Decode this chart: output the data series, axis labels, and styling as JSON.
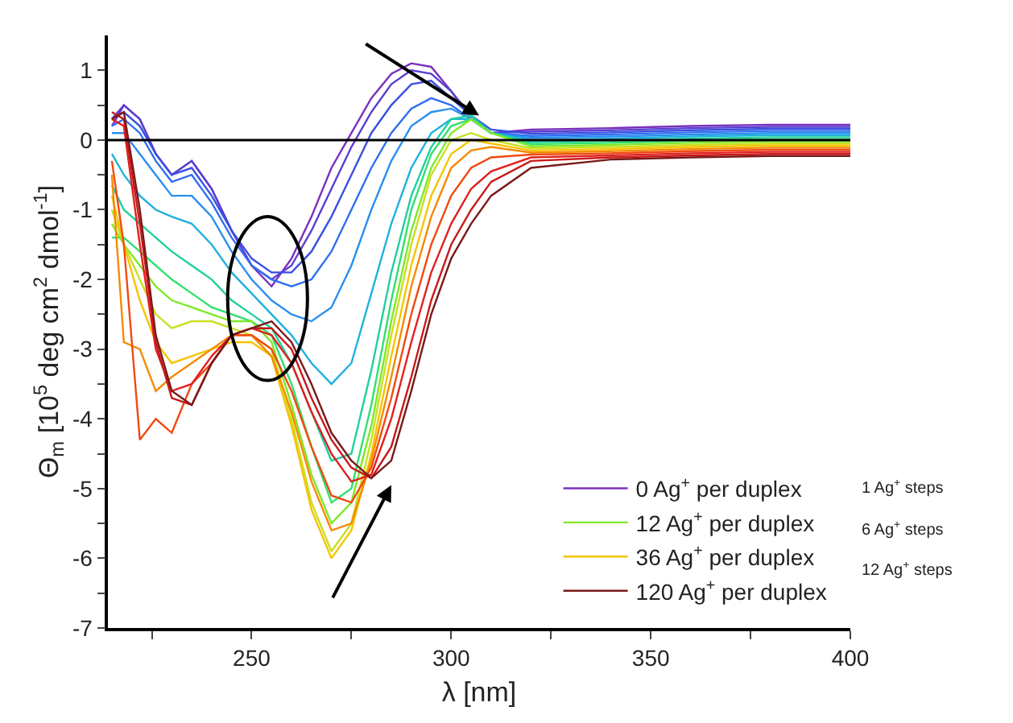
{
  "chart_data": {
    "type": "line",
    "xlabel": "λ [nm]",
    "ylabel": "Θ$_{m}$ [10$^{5}$ deg cm$^{2}$ dmol$^{-1}$]",
    "x": [
      215,
      218,
      222,
      226,
      230,
      235,
      240,
      245,
      250,
      255,
      260,
      265,
      270,
      275,
      280,
      285,
      290,
      295,
      300,
      305,
      310,
      320,
      340,
      360,
      380,
      400
    ],
    "xlim": [
      214,
      400
    ],
    "xticks": [
      {
        "value": 225,
        "label": null
      },
      250,
      {
        "value": 275,
        "label": null
      },
      300,
      {
        "value": 325,
        "label": null
      },
      350,
      {
        "value": 375,
        "label": null
      },
      400
    ],
    "ylim": [
      -7,
      1.5
    ],
    "yticks": [
      -7,
      {
        "value": -6.5,
        "label": null
      },
      -6,
      {
        "value": -5.5,
        "label": null
      },
      -5,
      {
        "value": -4.5,
        "label": null
      },
      -4,
      {
        "value": -3.5,
        "label": null
      },
      -3,
      {
        "value": -2.5,
        "label": null
      },
      -2,
      {
        "value": -1.5,
        "label": null
      },
      -1,
      {
        "value": -0.5,
        "label": null
      },
      0,
      {
        "value": 0.5,
        "label": null
      },
      1
    ],
    "legend": "bottom right",
    "marker": "none",
    "line_style": "solid",
    "ref_lines": [
      {
        "axis": "y",
        "value": 0,
        "color": "#000000"
      }
    ],
    "annotations": [
      "1 Ag$^{+}$ steps",
      "6 Ag$^{+}$ steps",
      "12 Ag$^{+}$ steps"
    ],
    "series": [
      {
        "name": "0 Ag$^{+}$ per duplex",
        "color": "#7b2fbe",
        "values": [
          0.2,
          0.5,
          0.3,
          -0.2,
          -0.5,
          -0.3,
          -0.7,
          -1.3,
          -1.8,
          -2.1,
          -1.7,
          -1.1,
          -0.4,
          0.1,
          0.6,
          0.95,
          1.1,
          1.05,
          0.7,
          0.3,
          0.1,
          0.15,
          0.17,
          0.2,
          0.22,
          0.22
        ]
      },
      {
        "color": "#5a3fd0",
        "values": [
          0.3,
          0.5,
          0.3,
          -0.2,
          -0.5,
          -0.3,
          -0.7,
          -1.3,
          -1.8,
          -2.0,
          -1.8,
          -1.3,
          -0.7,
          -0.1,
          0.4,
          0.8,
          1.0,
          0.95,
          0.7,
          0.35,
          0.1,
          0.12,
          0.14,
          0.17,
          0.19,
          0.19
        ]
      },
      {
        "color": "#3a4fe0",
        "values": [
          0.3,
          0.4,
          0.2,
          -0.2,
          -0.5,
          -0.4,
          -0.8,
          -1.3,
          -1.7,
          -1.9,
          -1.9,
          -1.6,
          -1.1,
          -0.5,
          0.1,
          0.5,
          0.8,
          0.85,
          0.6,
          0.35,
          0.15,
          0.09,
          0.11,
          0.14,
          0.16,
          0.16
        ]
      },
      {
        "color": "#2f6ff0",
        "values": [
          0.2,
          0.3,
          0.1,
          -0.3,
          -0.6,
          -0.5,
          -0.9,
          -1.4,
          -1.8,
          -2.0,
          -2.1,
          -2.0,
          -1.6,
          -1.0,
          -0.4,
          0.1,
          0.45,
          0.6,
          0.5,
          0.3,
          0.1,
          0.06,
          0.08,
          0.11,
          0.13,
          0.13
        ]
      },
      {
        "color": "#2a8ff0",
        "values": [
          0.1,
          0.1,
          -0.2,
          -0.5,
          -0.8,
          -0.8,
          -1.1,
          -1.6,
          -2.0,
          -2.3,
          -2.5,
          -2.6,
          -2.4,
          -1.8,
          -1.0,
          -0.3,
          0.2,
          0.4,
          0.45,
          0.3,
          0.1,
          0.03,
          0.05,
          0.08,
          0.1,
          0.1
        ]
      },
      {
        "color": "#20b0e0",
        "values": [
          -0.2,
          -0.5,
          -0.8,
          -1.0,
          -1.1,
          -1.2,
          -1.5,
          -1.9,
          -2.2,
          -2.5,
          -2.8,
          -3.2,
          -3.5,
          -3.2,
          -2.2,
          -1.2,
          -0.4,
          0.1,
          0.3,
          0.3,
          0.1,
          0.0,
          0.02,
          0.05,
          0.07,
          0.07
        ]
      },
      {
        "color": "#20d0a0",
        "values": [
          -0.65,
          -1.0,
          -1.2,
          -1.4,
          -1.6,
          -1.8,
          -2.0,
          -2.3,
          -2.5,
          -2.7,
          -3.2,
          -3.9,
          -4.6,
          -4.5,
          -3.3,
          -1.9,
          -0.8,
          -0.1,
          0.3,
          0.35,
          0.1,
          -0.03,
          -0.01,
          0.02,
          0.04,
          0.04
        ]
      },
      {
        "color": "#30e070",
        "values": [
          -1.4,
          -1.4,
          -1.6,
          -1.8,
          -2.0,
          -2.2,
          -2.4,
          -2.5,
          -2.6,
          -2.8,
          -3.5,
          -4.4,
          -5.2,
          -5.0,
          -3.8,
          -2.3,
          -1.0,
          -0.2,
          0.2,
          0.3,
          0.1,
          -0.06,
          -0.04,
          -0.01,
          0.01,
          0.01
        ]
      },
      {
        "name": "12 Ag$^{+}$ per duplex",
        "color": "#7ee82a",
        "values": [
          -1.2,
          -1.5,
          -1.8,
          -2.1,
          -2.3,
          -2.4,
          -2.5,
          -2.6,
          -2.6,
          -2.9,
          -3.8,
          -4.8,
          -5.5,
          -5.2,
          -4.1,
          -2.6,
          -1.3,
          -0.4,
          0.1,
          0.3,
          0.1,
          -0.09,
          -0.07,
          -0.04,
          -0.02,
          -0.02
        ]
      },
      {
        "color": "#c8e020",
        "values": [
          -1.0,
          -1.5,
          -2.0,
          -2.5,
          -2.7,
          -2.6,
          -2.6,
          -2.7,
          -2.8,
          -3.0,
          -4.0,
          -5.2,
          -5.9,
          -5.5,
          -4.3,
          -2.8,
          -1.5,
          -0.5,
          0.0,
          0.1,
          0.0,
          -0.12,
          -0.1,
          -0.07,
          -0.05,
          -0.05
        ]
      },
      {
        "name": "36 Ag$^{+}$ per duplex",
        "color": "#f5c400",
        "values": [
          -0.8,
          -1.5,
          -2.3,
          -2.9,
          -3.2,
          -3.1,
          -3.0,
          -2.9,
          -2.9,
          -3.1,
          -4.1,
          -5.3,
          -6.0,
          -5.6,
          -4.5,
          -3.1,
          -1.8,
          -0.8,
          -0.2,
          0.0,
          -0.05,
          -0.15,
          -0.13,
          -0.1,
          -0.08,
          -0.08
        ]
      },
      {
        "color": "#f58a00",
        "values": [
          -0.5,
          -2.9,
          -3.0,
          -3.6,
          -3.4,
          -3.2,
          -3.0,
          -2.8,
          -2.8,
          -3.1,
          -3.9,
          -4.9,
          -5.6,
          -5.5,
          -4.6,
          -3.4,
          -2.1,
          -1.1,
          -0.4,
          -0.15,
          -0.1,
          -0.18,
          -0.16,
          -0.13,
          -0.11,
          -0.11
        ]
      },
      {
        "color": "#f04a10",
        "values": [
          -0.3,
          -1.5,
          -4.3,
          -4.0,
          -4.2,
          -3.5,
          -3.2,
          -2.8,
          -2.8,
          -3.0,
          -3.6,
          -4.4,
          -5.1,
          -5.2,
          -4.7,
          -3.7,
          -2.5,
          -1.5,
          -0.8,
          -0.4,
          -0.25,
          -0.21,
          -0.19,
          -0.16,
          -0.14,
          -0.14
        ]
      },
      {
        "color": "#e02020",
        "values": [
          0.3,
          0.2,
          -1.5,
          -3.0,
          -3.6,
          -3.5,
          -3.1,
          -2.8,
          -2.7,
          -2.8,
          -3.2,
          -3.9,
          -4.5,
          -4.9,
          -4.8,
          -4.0,
          -2.9,
          -1.9,
          -1.2,
          -0.7,
          -0.45,
          -0.25,
          -0.22,
          -0.19,
          -0.17,
          -0.17
        ]
      },
      {
        "color": "#c81818",
        "values": [
          0.4,
          0.3,
          -1.2,
          -2.9,
          -3.7,
          -3.8,
          -3.2,
          -2.8,
          -2.7,
          -2.7,
          -3.0,
          -3.7,
          -4.3,
          -4.7,
          -4.85,
          -4.4,
          -3.4,
          -2.3,
          -1.5,
          -1.0,
          -0.6,
          -0.3,
          -0.25,
          -0.22,
          -0.2,
          -0.2
        ]
      },
      {
        "name": "120 Ag$^{+}$ per duplex",
        "color": "#7a1a1a",
        "values": [
          0.3,
          0.4,
          -1.0,
          -2.8,
          -3.6,
          -3.8,
          -3.2,
          -2.8,
          -2.7,
          -2.6,
          -2.9,
          -3.5,
          -4.2,
          -4.6,
          -4.85,
          -4.6,
          -3.6,
          -2.5,
          -1.7,
          -1.2,
          -0.8,
          -0.4,
          -0.28,
          -0.25,
          -0.23,
          -0.23
        ]
      }
    ]
  }
}
